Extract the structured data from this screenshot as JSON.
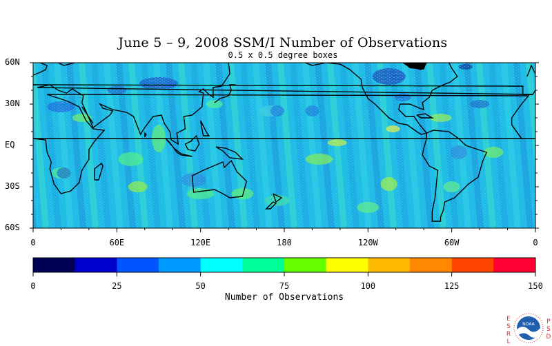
{
  "title": "June 5 – 9, 2008 SSM/I Number of Observations",
  "subtitle": "0.5 x 0.5 degree boxes",
  "lat_ticks": [
    {
      "label": "60N",
      "value": 60
    },
    {
      "label": "30N",
      "value": 30
    },
    {
      "label": "EQ",
      "value": 0
    },
    {
      "label": "30S",
      "value": -30
    },
    {
      "label": "60S",
      "value": -60
    }
  ],
  "lon_ticks": [
    {
      "label": "0",
      "value": 0
    },
    {
      "label": "60E",
      "value": 60
    },
    {
      "label": "120E",
      "value": 120
    },
    {
      "label": "180",
      "value": 180
    },
    {
      "label": "120W",
      "value": 240
    },
    {
      "label": "60W",
      "value": 300
    },
    {
      "label": "0",
      "value": 360
    }
  ],
  "colorbar": {
    "title": "Number of Observations",
    "ticks": [
      {
        "label": "0",
        "value": 0
      },
      {
        "label": "25",
        "value": 25
      },
      {
        "label": "50",
        "value": 50
      },
      {
        "label": "75",
        "value": 75
      },
      {
        "label": "100",
        "value": 100
      },
      {
        "label": "125",
        "value": 125
      },
      {
        "label": "150",
        "value": 150
      }
    ],
    "colors": [
      "#000055",
      "#0000cc",
      "#0055ff",
      "#0099ff",
      "#00ffff",
      "#00ff99",
      "#66ff00",
      "#ffff00",
      "#ffbb00",
      "#ff8800",
      "#ff4400",
      "#ff0033"
    ]
  },
  "logo": {
    "left_letters": "ESRL",
    "right_letters": "PSD",
    "badge": "NOAA"
  }
}
